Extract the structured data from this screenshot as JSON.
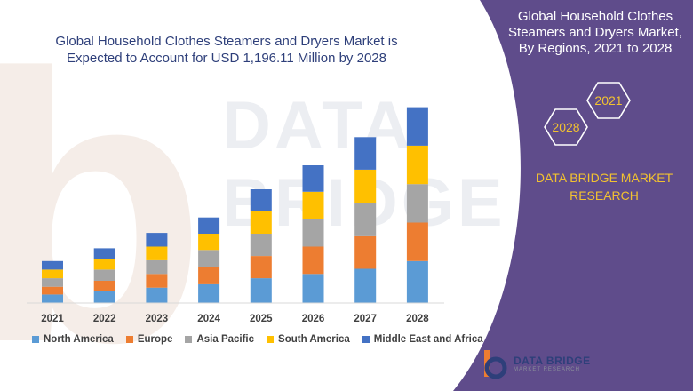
{
  "title_lines": [
    "Global Household Clothes Steamers and Dryers Market is",
    "Expected to Account for USD 1,196.11 Million by 2028"
  ],
  "panel": {
    "heading_lines": [
      "Global Household Clothes",
      "Steamers and Dryers Market,",
      "By Regions, 2021 to 2028"
    ],
    "badge_years": [
      "2021",
      "2028"
    ],
    "research_lines": [
      "DATA BRIDGE MARKET",
      "RESEARCH"
    ],
    "bg_color": "#5f4c8b",
    "accent_color": "#f2c230"
  },
  "watermark": {
    "text": "DATA BRIDGE"
  },
  "footer_logo": {
    "brand": "DATA BRIDGE",
    "sub": "MARKET RESEARCH"
  },
  "chart_data": {
    "type": "bar",
    "stacked": true,
    "categories": [
      "2021",
      "2022",
      "2023",
      "2024",
      "2025",
      "2026",
      "2027",
      "2028"
    ],
    "series": [
      {
        "name": "North America",
        "color": "#5b9bd5",
        "values": [
          10,
          14,
          18,
          22,
          29,
          34,
          40,
          49
        ]
      },
      {
        "name": "Europe",
        "color": "#ed7d31",
        "values": [
          9,
          12,
          16,
          20,
          26,
          32,
          38,
          45
        ]
      },
      {
        "name": "Asia Pacific",
        "color": "#a5a5a5",
        "values": [
          10,
          13,
          16,
          20,
          26,
          32,
          39,
          45
        ]
      },
      {
        "name": "South America",
        "color": "#ffc000",
        "values": [
          10,
          13,
          16,
          19,
          26,
          32,
          39,
          45
        ]
      },
      {
        "name": "Middle East and Africa",
        "color": "#4472c4",
        "values": [
          10,
          12,
          16,
          19,
          26,
          31,
          38,
          45
        ]
      }
    ],
    "ylim": [
      0,
      240
    ],
    "grid": false,
    "legend": "bottom",
    "xlabel": "",
    "ylabel": ""
  }
}
